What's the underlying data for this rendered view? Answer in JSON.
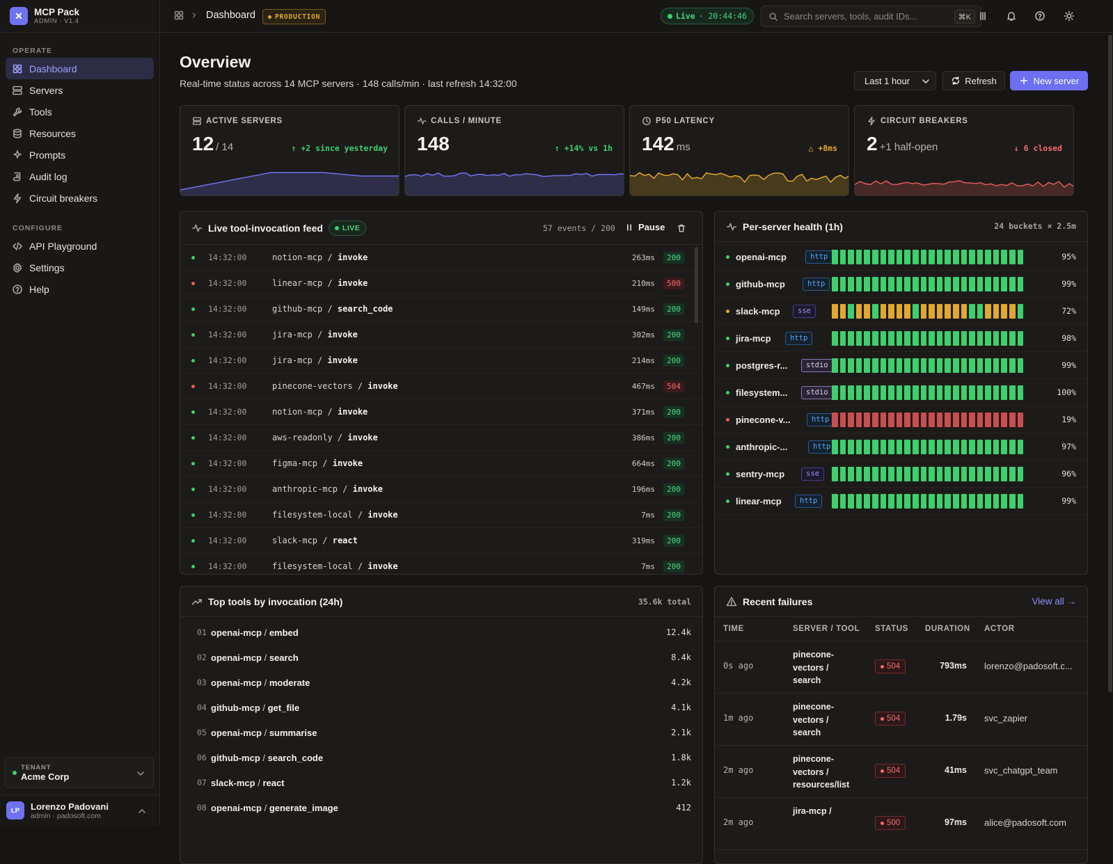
{
  "brand": {
    "name": "MCP Pack",
    "sub": "ADMIN · V1.4"
  },
  "nav": {
    "operate_label": "OPERATE",
    "configure_label": "CONFIGURE",
    "operate": [
      {
        "label": "Dashboard",
        "icon": "grid-icon"
      },
      {
        "label": "Servers",
        "icon": "server-icon"
      },
      {
        "label": "Tools",
        "icon": "wrench-icon"
      },
      {
        "label": "Resources",
        "icon": "database-icon"
      },
      {
        "label": "Prompts",
        "icon": "sparkle-icon"
      },
      {
        "label": "Audit log",
        "icon": "scroll-icon"
      },
      {
        "label": "Circuit breakers",
        "icon": "bolt-icon"
      }
    ],
    "configure": [
      {
        "label": "API Playground",
        "icon": "code-icon"
      },
      {
        "label": "Settings",
        "icon": "gear-icon"
      },
      {
        "label": "Help",
        "icon": "help-icon"
      }
    ]
  },
  "tenant": {
    "label": "TENANT",
    "name": "Acme Corp"
  },
  "user": {
    "initials": "LP",
    "name": "Lorenzo Padovani",
    "email": "admin · padosoft.com"
  },
  "topbar": {
    "breadcrumb": "Dashboard",
    "env": "PRODUCTION",
    "live_label": "Live",
    "live_time": "· 20:44:46",
    "search_placeholder": "Search servers, tools, audit IDs...",
    "shortcut": "⌘K"
  },
  "header": {
    "title": "Overview",
    "subtitle": "Real-time status across 14 MCP servers · 148 calls/min · last refresh 14:32:00",
    "range": "Last 1 hour",
    "refresh": "Refresh",
    "new_server": "New server"
  },
  "stats": [
    {
      "label": "ACTIVE SERVERS",
      "value": "12",
      "suffix": "/ 14",
      "delta": "↑ +2 since yesterday",
      "delta_color": "#3ecf6e",
      "color": "#6f72f0"
    },
    {
      "label": "CALLS / MINUTE",
      "value": "148",
      "suffix": "",
      "delta": "↑ +14% vs 1h",
      "delta_color": "#3ecf6e",
      "color": "#6f72f0"
    },
    {
      "label": "P50 LATENCY",
      "value": "142",
      "suffix": "ms",
      "delta": "△ +8ms",
      "delta_color": "#e0a82e",
      "color": "#e0a82e"
    },
    {
      "label": "CIRCUIT BREAKERS",
      "value": "2",
      "suffix": "+1 half-open",
      "delta": "↓ 6 closed",
      "delta_color": "#f26a6a",
      "color": "#e05a5a"
    }
  ],
  "feed": {
    "title": "Live tool-invocation feed",
    "live_badge": "LIVE",
    "count": "57 events / 200",
    "pause": "Pause",
    "rows": [
      {
        "time": "14:32:00",
        "server": "notion-mcp",
        "tool": "invoke",
        "ms": "263ms",
        "code": "200"
      },
      {
        "time": "14:32:00",
        "server": "linear-mcp",
        "tool": "invoke",
        "ms": "210ms",
        "code": "500"
      },
      {
        "time": "14:32:00",
        "server": "github-mcp",
        "tool": "search_code",
        "ms": "149ms",
        "code": "200"
      },
      {
        "time": "14:32:00",
        "server": "jira-mcp",
        "tool": "invoke",
        "ms": "302ms",
        "code": "200"
      },
      {
        "time": "14:32:00",
        "server": "jira-mcp",
        "tool": "invoke",
        "ms": "214ms",
        "code": "200"
      },
      {
        "time": "14:32:00",
        "server": "pinecone-vectors",
        "tool": "invoke",
        "ms": "467ms",
        "code": "504"
      },
      {
        "time": "14:32:00",
        "server": "notion-mcp",
        "tool": "invoke",
        "ms": "371ms",
        "code": "200"
      },
      {
        "time": "14:32:00",
        "server": "aws-readonly",
        "tool": "invoke",
        "ms": "386ms",
        "code": "200"
      },
      {
        "time": "14:32:00",
        "server": "figma-mcp",
        "tool": "invoke",
        "ms": "664ms",
        "code": "200"
      },
      {
        "time": "14:32:00",
        "server": "anthropic-mcp",
        "tool": "invoke",
        "ms": "196ms",
        "code": "200"
      },
      {
        "time": "14:32:00",
        "server": "filesystem-local",
        "tool": "invoke",
        "ms": "7ms",
        "code": "200"
      },
      {
        "time": "14:32:00",
        "server": "slack-mcp",
        "tool": "react",
        "ms": "319ms",
        "code": "200"
      },
      {
        "time": "14:32:00",
        "server": "filesystem-local",
        "tool": "invoke",
        "ms": "7ms",
        "code": "200"
      }
    ]
  },
  "health": {
    "title": "Per-server health (1h)",
    "meta": "24 buckets × 2.5m",
    "rows": [
      {
        "name": "openai-mcp",
        "transport": "http",
        "pct": "95%",
        "status": "green",
        "bars": "gggggggggggggggggggggggg"
      },
      {
        "name": "github-mcp",
        "transport": "http",
        "pct": "99%",
        "status": "green",
        "bars": "gggggggggggggggggggggggg"
      },
      {
        "name": "slack-mcp",
        "transport": "sse",
        "pct": "72%",
        "status": "amber",
        "bars": "aagaagaaaagaaaaaaggaaaag"
      },
      {
        "name": "jira-mcp",
        "transport": "http",
        "pct": "98%",
        "status": "green",
        "bars": "gggggggggggggggggggggggg"
      },
      {
        "name": "postgres-r...",
        "transport": "stdio",
        "pct": "99%",
        "status": "green",
        "bars": "gggggggggggggggggggggggg"
      },
      {
        "name": "filesystem...",
        "transport": "stdio",
        "pct": "100%",
        "status": "green",
        "bars": "gggggggggggggggggggggggg"
      },
      {
        "name": "pinecone-v...",
        "transport": "http",
        "pct": "19%",
        "status": "red",
        "bars": "rrrrrrrrrrrrrrrrrrrrrrrr"
      },
      {
        "name": "anthropic-...",
        "transport": "http",
        "pct": "97%",
        "status": "green",
        "bars": "gggggggggggggggggggggggg"
      },
      {
        "name": "sentry-mcp",
        "transport": "sse",
        "pct": "96%",
        "status": "green",
        "bars": "gggggggggggggggggggggggg"
      },
      {
        "name": "linear-mcp",
        "transport": "http",
        "pct": "99%",
        "status": "green",
        "bars": "gggggggggggggggggggggggg"
      }
    ]
  },
  "top_tools": {
    "title": "Top tools by invocation (24h)",
    "total": "35.6k total",
    "rows": [
      {
        "n": "01",
        "server": "openai-mcp",
        "tool": "embed",
        "value": "12.4k"
      },
      {
        "n": "02",
        "server": "openai-mcp",
        "tool": "search",
        "value": "8.4k"
      },
      {
        "n": "03",
        "server": "openai-mcp",
        "tool": "moderate",
        "value": "4.2k"
      },
      {
        "n": "04",
        "server": "github-mcp",
        "tool": "get_file",
        "value": "4.1k"
      },
      {
        "n": "05",
        "server": "openai-mcp",
        "tool": "summarise",
        "value": "2.1k"
      },
      {
        "n": "06",
        "server": "github-mcp",
        "tool": "search_code",
        "value": "1.8k"
      },
      {
        "n": "07",
        "server": "slack-mcp",
        "tool": "react",
        "value": "1.2k"
      },
      {
        "n": "08",
        "server": "openai-mcp",
        "tool": "generate_image",
        "value": "412"
      }
    ]
  },
  "failures": {
    "title": "Recent failures",
    "view_all": "View all →",
    "columns": [
      "TIME",
      "SERVER / TOOL",
      "STATUS",
      "DURATION",
      "ACTOR"
    ],
    "rows": [
      {
        "time": "0s ago",
        "server_a": "pinecone-",
        "server_b": "vectors /",
        "tool": "search",
        "status": "504",
        "duration": "793ms",
        "actor": "lorenzo@padosoft.c..."
      },
      {
        "time": "1m ago",
        "server_a": "pinecone-",
        "server_b": "vectors /",
        "tool": "search",
        "status": "504",
        "duration": "1.79s",
        "actor": "svc_zapier"
      },
      {
        "time": "2m ago",
        "server_a": "pinecone-",
        "server_b": "vectors /",
        "tool": "resources/list",
        "status": "504",
        "duration": "41ms",
        "actor": "svc_chatgpt_team"
      },
      {
        "time": "2m ago",
        "server_a": "jira-mcp /",
        "server_b": "",
        "tool": "",
        "status": "500",
        "duration": "97ms",
        "actor": "alice@padosoft.com"
      }
    ]
  },
  "colors": {
    "accent": "#6f72f0",
    "ok": "#3ecf6e",
    "warn": "#e0a82e",
    "error": "#e05a5a"
  }
}
